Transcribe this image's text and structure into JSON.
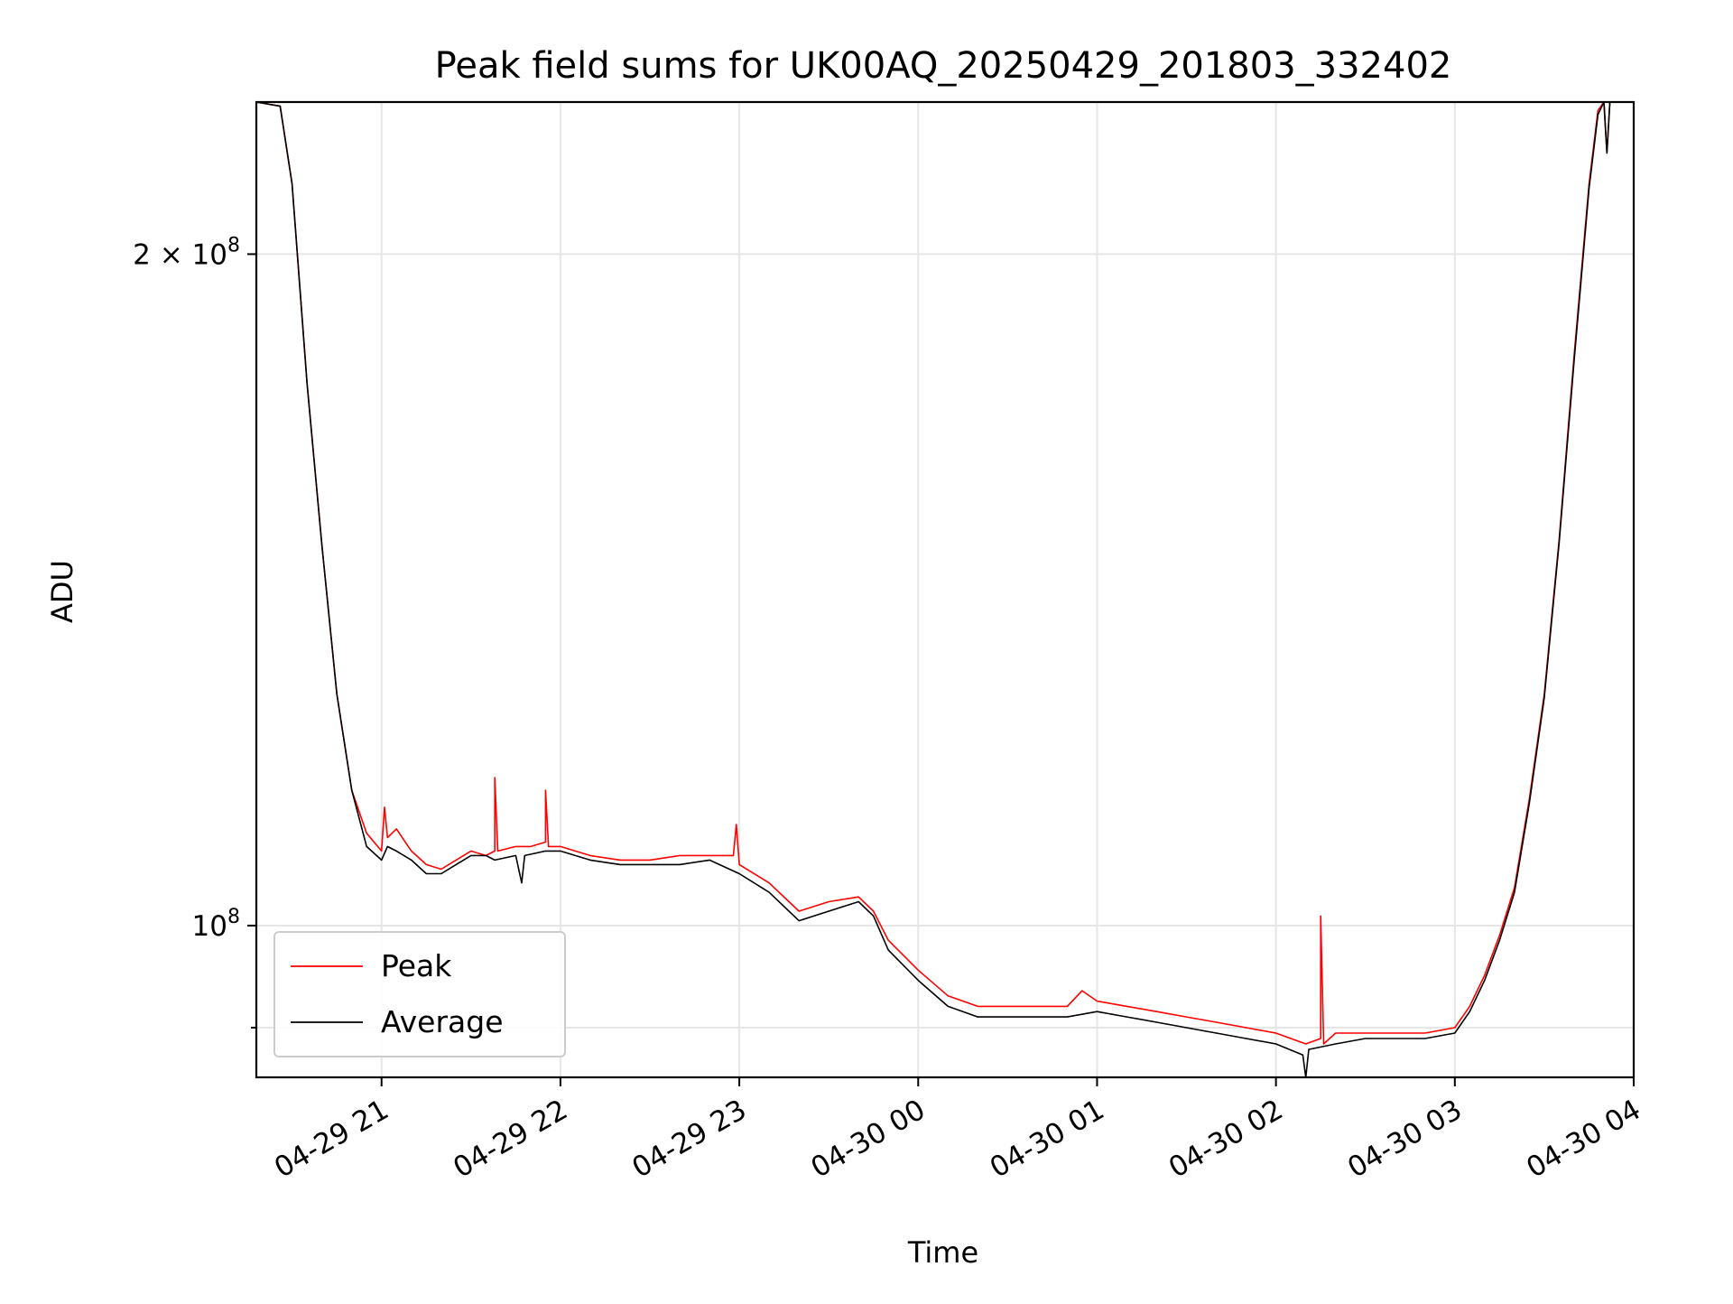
{
  "chart_data": {
    "type": "line",
    "title": "Peak field sums for UK00AQ_20250429_201803_332402",
    "xlabel": "Time",
    "ylabel": "ADU",
    "yscale": "log",
    "grid": true,
    "legend": {
      "placement": "lower-left",
      "entries": [
        "Peak",
        "Average"
      ]
    },
    "colors": {
      "Peak": "#ff0000",
      "Average": "#000000",
      "grid": "#e6e6e6",
      "axes": "#000000"
    },
    "xlim": [
      "2025-04-29 20:18",
      "2025-04-30 04:00"
    ],
    "ylim": [
      85500000,
      234000000
    ],
    "x_ticks": [
      {
        "value": "2025-04-29 21:00",
        "label": "04-29 21"
      },
      {
        "value": "2025-04-29 22:00",
        "label": "04-29 22"
      },
      {
        "value": "2025-04-29 23:00",
        "label": "04-29 23"
      },
      {
        "value": "2025-04-30 00:00",
        "label": "04-30 00"
      },
      {
        "value": "2025-04-30 01:00",
        "label": "04-30 01"
      },
      {
        "value": "2025-04-30 02:00",
        "label": "04-30 02"
      },
      {
        "value": "2025-04-30 03:00",
        "label": "04-30 03"
      },
      {
        "value": "2025-04-30 04:00",
        "label": "04-30 04"
      }
    ],
    "y_ticks": [
      {
        "value": 200000000,
        "label_base": "2 × 10",
        "label_exp": "8"
      },
      {
        "value": 100000000,
        "label_base": "10",
        "label_exp": "8"
      }
    ],
    "y_minor_ticks": [
      90000000
    ],
    "series": [
      {
        "name": "Peak",
        "x": [
          "2025-04-29 20:18",
          "2025-04-29 20:26",
          "2025-04-29 20:30",
          "2025-04-29 20:35",
          "2025-04-29 20:40",
          "2025-04-29 20:45",
          "2025-04-29 20:50",
          "2025-04-29 20:55",
          "2025-04-29 21:00",
          "2025-04-29 21:01",
          "2025-04-29 21:02",
          "2025-04-29 21:05",
          "2025-04-29 21:10",
          "2025-04-29 21:15",
          "2025-04-29 21:20",
          "2025-04-29 21:25",
          "2025-04-29 21:30",
          "2025-04-29 21:35",
          "2025-04-29 21:38",
          "2025-04-29 21:38",
          "2025-04-29 21:39",
          "2025-04-29 21:45",
          "2025-04-29 21:50",
          "2025-04-29 21:55",
          "2025-04-29 21:55",
          "2025-04-29 21:56",
          "2025-04-29 22:00",
          "2025-04-29 22:10",
          "2025-04-29 22:20",
          "2025-04-29 22:30",
          "2025-04-29 22:40",
          "2025-04-29 22:50",
          "2025-04-29 22:58",
          "2025-04-29 22:59",
          "2025-04-29 23:00",
          "2025-04-29 23:10",
          "2025-04-29 23:20",
          "2025-04-29 23:30",
          "2025-04-29 23:40",
          "2025-04-29 23:45",
          "2025-04-29 23:50",
          "2025-04-30 00:00",
          "2025-04-30 00:10",
          "2025-04-30 00:20",
          "2025-04-30 00:30",
          "2025-04-30 00:40",
          "2025-04-30 00:50",
          "2025-04-30 00:55",
          "2025-04-30 01:00",
          "2025-04-30 01:10",
          "2025-04-30 01:20",
          "2025-04-30 01:30",
          "2025-04-30 01:40",
          "2025-04-30 01:50",
          "2025-04-30 02:00",
          "2025-04-30 02:10",
          "2025-04-30 02:15",
          "2025-04-30 02:15",
          "2025-04-30 02:16",
          "2025-04-30 02:20",
          "2025-04-30 02:30",
          "2025-04-30 02:40",
          "2025-04-30 02:50",
          "2025-04-30 03:00",
          "2025-04-30 03:05",
          "2025-04-30 03:10",
          "2025-04-30 03:15",
          "2025-04-30 03:20",
          "2025-04-30 03:25",
          "2025-04-30 03:30",
          "2025-04-30 03:35",
          "2025-04-30 03:40",
          "2025-04-30 03:45",
          "2025-04-30 03:48",
          "2025-04-30 03:50",
          "2025-04-30 03:51",
          "2025-04-30 03:52",
          "2025-04-30 03:55",
          "2025-04-30 04:00"
        ],
        "y": [
          234000000,
          233000000,
          215000000,
          175000000,
          148000000,
          127000000,
          115000000,
          110000000,
          108000000,
          113000000,
          109500000,
          110500000,
          108000000,
          106500000,
          106000000,
          107000000,
          108000000,
          107500000,
          108000000,
          116500000,
          108000000,
          108500000,
          108500000,
          109000000,
          115000000,
          108500000,
          108500000,
          107500000,
          107000000,
          107000000,
          107500000,
          107500000,
          107500000,
          111000000,
          106500000,
          104500000,
          101500000,
          102500000,
          103000000,
          101500000,
          98500000,
          95500000,
          93000000,
          92000000,
          92000000,
          92000000,
          92000000,
          93500000,
          92500000,
          92000000,
          91500000,
          91000000,
          90500000,
          90000000,
          89500000,
          88500000,
          89000000,
          101000000,
          88500000,
          89500000,
          89500000,
          89500000,
          89500000,
          90000000,
          92000000,
          95000000,
          99000000,
          104000000,
          114000000,
          127000000,
          149000000,
          180000000,
          215000000,
          232000000,
          234000000,
          222000000,
          234000000,
          234000000,
          234000000
        ]
      },
      {
        "name": "Average",
        "x": [
          "2025-04-29 20:18",
          "2025-04-29 20:26",
          "2025-04-29 20:30",
          "2025-04-29 20:35",
          "2025-04-29 20:40",
          "2025-04-29 20:45",
          "2025-04-29 20:50",
          "2025-04-29 20:55",
          "2025-04-29 21:00",
          "2025-04-29 21:02",
          "2025-04-29 21:05",
          "2025-04-29 21:10",
          "2025-04-29 21:15",
          "2025-04-29 21:20",
          "2025-04-29 21:25",
          "2025-04-29 21:30",
          "2025-04-29 21:35",
          "2025-04-29 21:38",
          "2025-04-29 21:45",
          "2025-04-29 21:47",
          "2025-04-29 21:48",
          "2025-04-29 21:55",
          "2025-04-29 22:00",
          "2025-04-29 22:10",
          "2025-04-29 22:20",
          "2025-04-29 22:30",
          "2025-04-29 22:40",
          "2025-04-29 22:50",
          "2025-04-29 23:00",
          "2025-04-29 23:10",
          "2025-04-29 23:20",
          "2025-04-29 23:30",
          "2025-04-29 23:40",
          "2025-04-29 23:45",
          "2025-04-29 23:50",
          "2025-04-30 00:00",
          "2025-04-30 00:10",
          "2025-04-30 00:20",
          "2025-04-30 00:30",
          "2025-04-30 00:40",
          "2025-04-30 00:50",
          "2025-04-30 01:00",
          "2025-04-30 01:10",
          "2025-04-30 01:20",
          "2025-04-30 01:30",
          "2025-04-30 01:40",
          "2025-04-30 01:50",
          "2025-04-30 02:00",
          "2025-04-30 02:09",
          "2025-04-30 02:10",
          "2025-04-30 02:11",
          "2025-04-30 02:20",
          "2025-04-30 02:30",
          "2025-04-30 02:40",
          "2025-04-30 02:50",
          "2025-04-30 03:00",
          "2025-04-30 03:05",
          "2025-04-30 03:10",
          "2025-04-30 03:15",
          "2025-04-30 03:20",
          "2025-04-30 03:25",
          "2025-04-30 03:30",
          "2025-04-30 03:35",
          "2025-04-30 03:40",
          "2025-04-30 03:45",
          "2025-04-30 03:48",
          "2025-04-30 03:50",
          "2025-04-30 03:51",
          "2025-04-30 03:52",
          "2025-04-30 03:55",
          "2025-04-30 04:00"
        ],
        "y": [
          234000000,
          233000000,
          215000000,
          175000000,
          148000000,
          127000000,
          115000000,
          108500000,
          107000000,
          108500000,
          108000000,
          107000000,
          105500000,
          105500000,
          106500000,
          107500000,
          107500000,
          107000000,
          107500000,
          104500000,
          107500000,
          108000000,
          108000000,
          107000000,
          106500000,
          106500000,
          106500000,
          107000000,
          105500000,
          103500000,
          100500000,
          101500000,
          102500000,
          101000000,
          97500000,
          94500000,
          92000000,
          91000000,
          91000000,
          91000000,
          91000000,
          91500000,
          91000000,
          90500000,
          90000000,
          89500000,
          89000000,
          88500000,
          87500000,
          85500000,
          88000000,
          88500000,
          89000000,
          89000000,
          89000000,
          89500000,
          91500000,
          94500000,
          98500000,
          103500000,
          113500000,
          126500000,
          148500000,
          179000000,
          214000000,
          231000000,
          234000000,
          222000000,
          234000000,
          234000000,
          234000000
        ]
      }
    ]
  }
}
